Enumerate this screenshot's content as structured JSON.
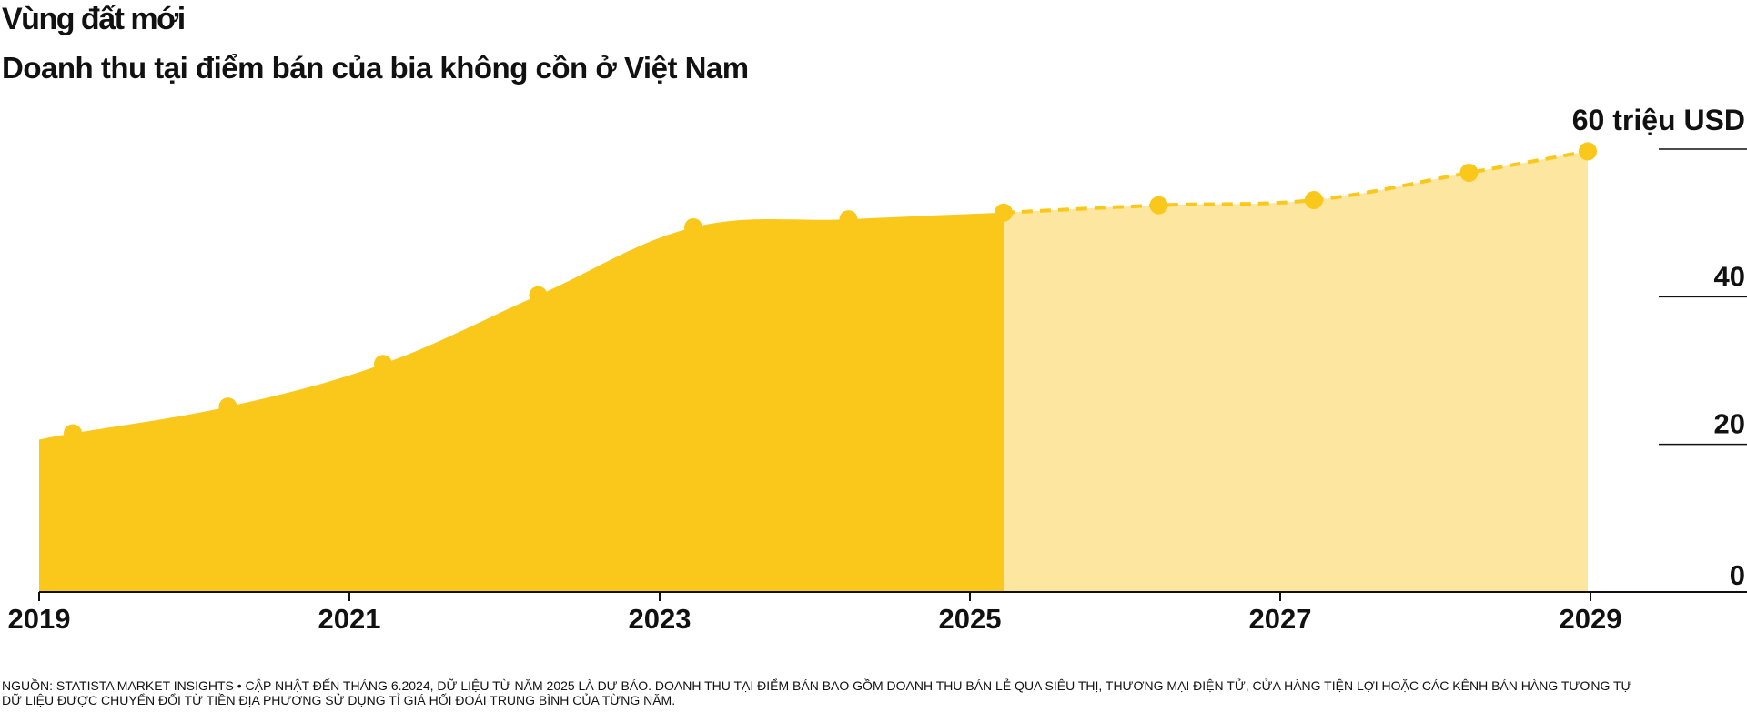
{
  "header": {
    "title": "Vùng đất mới",
    "subtitle": "Doanh thu tại điểm bán của bia không cồn ở Việt Nam"
  },
  "chart_data": {
    "type": "area",
    "title": "Vùng đất mới",
    "subtitle": "Doanh thu tại điểm bán của bia không cồn ở Việt Nam",
    "x": [
      2019,
      2020,
      2021,
      2022,
      2023,
      2024,
      2025,
      2026,
      2027,
      2028,
      2029
    ],
    "values": [
      21.5,
      25.1,
      30.9,
      40.2,
      49.4,
      50.5,
      51.4,
      52.4,
      53.1,
      56.8,
      59.7
    ],
    "forecast_from": 2025,
    "x_tick_labels": [
      "2019",
      "2021",
      "2023",
      "2025",
      "2027",
      "2029"
    ],
    "y_ticks": [
      {
        "value": 0,
        "label": "0"
      },
      {
        "value": 20,
        "label": "20"
      },
      {
        "value": 40,
        "label": "40"
      },
      {
        "value": 60,
        "label": "60 triệu USD"
      }
    ],
    "ylim": [
      0,
      60
    ],
    "xlim": [
      2019,
      2029
    ],
    "grid": false,
    "colors": {
      "actual": "#F9C81A",
      "forecast": "#FCE6A0",
      "line": "#F9C81A",
      "axis": "#111111"
    }
  },
  "footnote": {
    "line1": "NGUỒN: STATISTA MARKET INSIGHTS • CẬP NHẬT ĐẾN THÁNG 6.2024, DỮ LIỆU TỪ NĂM 2025 LÀ DỰ BÁO. DOANH THU TẠI ĐIỂM BÁN BAO GỒM DOANH THU BÁN LẺ QUA SIÊU THỊ, THƯƠNG MẠI ĐIỆN TỬ, CỬA HÀNG TIỆN LỢI HOẶC CÁC KÊNH BÁN HÀNG TƯƠNG TỰ",
    "line2": "DỮ LIỆU ĐƯỢC CHUYỂN ĐỔI TỪ TIỀN ĐỊA PHƯƠNG SỬ DỤNG TỈ GIÁ HỐI ĐOÁI TRUNG BÌNH CỦA TỪNG NĂM."
  }
}
